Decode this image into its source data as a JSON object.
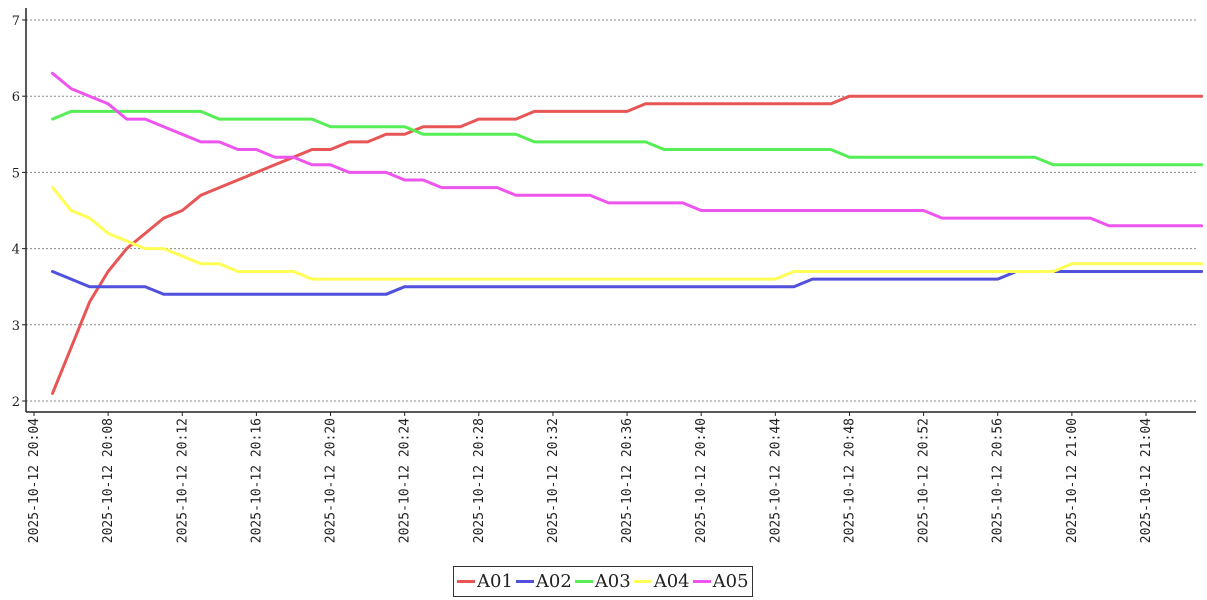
{
  "chart_data": {
    "type": "line",
    "title": "",
    "xlabel": "",
    "ylabel": "",
    "ylim": [
      2,
      7
    ],
    "yticks": [
      "2",
      "3",
      "4",
      "5",
      "6",
      "7"
    ],
    "grid": "horizontal-dashed",
    "legend_position": "bottom-center",
    "x_tick_labels": [
      "2025-10-12 20:04",
      "2025-10-12 20:08",
      "2025-10-12 20:12",
      "2025-10-12 20:16",
      "2025-10-12 20:20",
      "2025-10-12 20:24",
      "2025-10-12 20:28",
      "2025-10-12 20:32",
      "2025-10-12 20:36",
      "2025-10-12 20:40",
      "2025-10-12 20:44",
      "2025-10-12 20:48",
      "2025-10-12 20:52",
      "2025-10-12 20:56",
      "2025-10-12 21:00",
      "2025-10-12 21:04"
    ],
    "x": [
      "2025-10-12 20:05",
      "2025-10-12 20:06",
      "2025-10-12 20:07",
      "2025-10-12 20:08",
      "2025-10-12 20:09",
      "2025-10-12 20:10",
      "2025-10-12 20:11",
      "2025-10-12 20:12",
      "2025-10-12 20:13",
      "2025-10-12 20:14",
      "2025-10-12 20:15",
      "2025-10-12 20:16",
      "2025-10-12 20:17",
      "2025-10-12 20:18",
      "2025-10-12 20:19",
      "2025-10-12 20:20",
      "2025-10-12 20:21",
      "2025-10-12 20:22",
      "2025-10-12 20:23",
      "2025-10-12 20:24",
      "2025-10-12 20:25",
      "2025-10-12 20:26",
      "2025-10-12 20:27",
      "2025-10-12 20:28",
      "2025-10-12 20:29",
      "2025-10-12 20:30",
      "2025-10-12 20:31",
      "2025-10-12 20:32",
      "2025-10-12 20:33",
      "2025-10-12 20:34",
      "2025-10-12 20:35",
      "2025-10-12 20:36",
      "2025-10-12 20:37",
      "2025-10-12 20:38",
      "2025-10-12 20:39",
      "2025-10-12 20:40",
      "2025-10-12 20:41",
      "2025-10-12 20:42",
      "2025-10-12 20:43",
      "2025-10-12 20:44",
      "2025-10-12 20:45",
      "2025-10-12 20:46",
      "2025-10-12 20:47",
      "2025-10-12 20:48",
      "2025-10-12 20:49",
      "2025-10-12 20:50",
      "2025-10-12 20:51",
      "2025-10-12 20:52",
      "2025-10-12 20:53",
      "2025-10-12 20:54",
      "2025-10-12 20:55",
      "2025-10-12 20:56",
      "2025-10-12 20:57",
      "2025-10-12 20:58",
      "2025-10-12 20:59",
      "2025-10-12 21:00",
      "2025-10-12 21:01",
      "2025-10-12 21:02",
      "2025-10-12 21:03",
      "2025-10-12 21:04",
      "2025-10-12 21:05",
      "2025-10-12 21:06",
      "2025-10-12 21:07"
    ],
    "series": [
      {
        "name": "A01",
        "color": "#e85555",
        "values": [
          2.1,
          2.7,
          3.3,
          3.7,
          4.0,
          4.2,
          4.4,
          4.5,
          4.7,
          4.8,
          4.9,
          5.0,
          5.1,
          5.2,
          5.3,
          5.3,
          5.4,
          5.4,
          5.5,
          5.5,
          5.6,
          5.6,
          5.6,
          5.7,
          5.7,
          5.7,
          5.8,
          5.8,
          5.8,
          5.8,
          5.8,
          5.8,
          5.9,
          5.9,
          5.9,
          5.9,
          5.9,
          5.9,
          5.9,
          5.9,
          5.9,
          5.9,
          5.9,
          6.0,
          6.0,
          6.0,
          6.0,
          6.0,
          6.0,
          6.0,
          6.0,
          6.0,
          6.0,
          6.0,
          6.0,
          6.0,
          6.0,
          6.0,
          6.0,
          6.0,
          6.0,
          6.0,
          6.0
        ]
      },
      {
        "name": "A02",
        "color": "#5050dd",
        "values": [
          3.7,
          3.6,
          3.5,
          3.5,
          3.5,
          3.5,
          3.4,
          3.4,
          3.4,
          3.4,
          3.4,
          3.4,
          3.4,
          3.4,
          3.4,
          3.4,
          3.4,
          3.4,
          3.4,
          3.5,
          3.5,
          3.5,
          3.5,
          3.5,
          3.5,
          3.5,
          3.5,
          3.5,
          3.5,
          3.5,
          3.5,
          3.5,
          3.5,
          3.5,
          3.5,
          3.5,
          3.5,
          3.5,
          3.5,
          3.5,
          3.5,
          3.6,
          3.6,
          3.6,
          3.6,
          3.6,
          3.6,
          3.6,
          3.6,
          3.6,
          3.6,
          3.6,
          3.7,
          3.7,
          3.7,
          3.7,
          3.7,
          3.7,
          3.7,
          3.7,
          3.7,
          3.7,
          3.7
        ]
      },
      {
        "name": "A03",
        "color": "#55ee55",
        "values": [
          5.7,
          5.8,
          5.8,
          5.8,
          5.8,
          5.8,
          5.8,
          5.8,
          5.8,
          5.7,
          5.7,
          5.7,
          5.7,
          5.7,
          5.7,
          5.6,
          5.6,
          5.6,
          5.6,
          5.6,
          5.5,
          5.5,
          5.5,
          5.5,
          5.5,
          5.5,
          5.4,
          5.4,
          5.4,
          5.4,
          5.4,
          5.4,
          5.4,
          5.3,
          5.3,
          5.3,
          5.3,
          5.3,
          5.3,
          5.3,
          5.3,
          5.3,
          5.3,
          5.2,
          5.2,
          5.2,
          5.2,
          5.2,
          5.2,
          5.2,
          5.2,
          5.2,
          5.2,
          5.2,
          5.1,
          5.1,
          5.1,
          5.1,
          5.1,
          5.1,
          5.1,
          5.1,
          5.1
        ]
      },
      {
        "name": "A04",
        "color": "#ffff55",
        "values": [
          4.8,
          4.5,
          4.4,
          4.2,
          4.1,
          4.0,
          4.0,
          3.9,
          3.8,
          3.8,
          3.7,
          3.7,
          3.7,
          3.7,
          3.6,
          3.6,
          3.6,
          3.6,
          3.6,
          3.6,
          3.6,
          3.6,
          3.6,
          3.6,
          3.6,
          3.6,
          3.6,
          3.6,
          3.6,
          3.6,
          3.6,
          3.6,
          3.6,
          3.6,
          3.6,
          3.6,
          3.6,
          3.6,
          3.6,
          3.6,
          3.7,
          3.7,
          3.7,
          3.7,
          3.7,
          3.7,
          3.7,
          3.7,
          3.7,
          3.7,
          3.7,
          3.7,
          3.7,
          3.7,
          3.7,
          3.8,
          3.8,
          3.8,
          3.8,
          3.8,
          3.8,
          3.8,
          3.8
        ]
      },
      {
        "name": "A05",
        "color": "#ee55ee",
        "values": [
          6.3,
          6.1,
          6.0,
          5.9,
          5.7,
          5.7,
          5.6,
          5.5,
          5.4,
          5.4,
          5.3,
          5.3,
          5.2,
          5.2,
          5.1,
          5.1,
          5.0,
          5.0,
          5.0,
          4.9,
          4.9,
          4.8,
          4.8,
          4.8,
          4.8,
          4.7,
          4.7,
          4.7,
          4.7,
          4.7,
          4.6,
          4.6,
          4.6,
          4.6,
          4.6,
          4.5,
          4.5,
          4.5,
          4.5,
          4.5,
          4.5,
          4.5,
          4.5,
          4.5,
          4.5,
          4.5,
          4.5,
          4.5,
          4.4,
          4.4,
          4.4,
          4.4,
          4.4,
          4.4,
          4.4,
          4.4,
          4.4,
          4.3,
          4.3,
          4.3,
          4.3,
          4.3,
          4.3
        ]
      }
    ]
  }
}
